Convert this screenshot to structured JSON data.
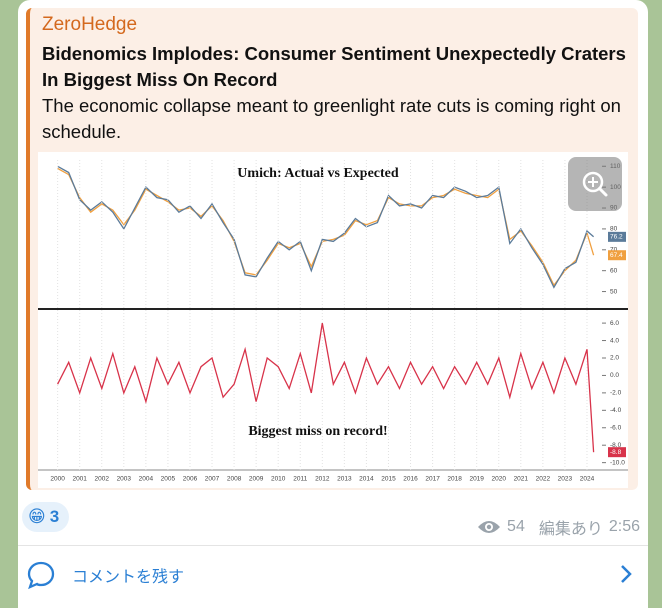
{
  "message": {
    "source": "ZeroHedge",
    "title": "Bidenomics Implodes: Consumer Sentiment Unexpectedly Craters In Biggest Miss On Record",
    "text": "The economic collapse meant to greenlight rate cuts is coming right on schedule.",
    "reaction_emoji": "😁",
    "reaction_count": 3,
    "views": 54,
    "edited": "編集あり",
    "time": "2:56",
    "comment": "コメントを残す"
  },
  "chart_data": [
    {
      "type": "line",
      "title": "Umich: Actual vs Expected",
      "x": [
        2000,
        2000.5,
        2001,
        2001.5,
        2002,
        2002.5,
        2003,
        2003.5,
        2004,
        2004.5,
        2005,
        2005.5,
        2006,
        2006.5,
        2007,
        2007.5,
        2008,
        2008.5,
        2009,
        2009.5,
        2010,
        2010.5,
        2011,
        2011.5,
        2012,
        2012.5,
        2013,
        2013.5,
        2014,
        2014.5,
        2015,
        2015.5,
        2016,
        2016.5,
        2017,
        2017.5,
        2018,
        2018.5,
        2019,
        2019.5,
        2020,
        2020.5,
        2021,
        2021.5,
        2022,
        2022.5,
        2023,
        2023.5,
        2024,
        2024.3
      ],
      "series": [
        {
          "color": "#f0a040",
          "values": [
            109,
            106,
            95,
            88,
            92,
            89,
            82,
            89,
            99,
            96,
            93,
            89,
            90,
            86,
            91,
            84,
            74,
            59,
            58,
            65,
            73,
            71,
            73,
            62,
            74,
            75,
            77,
            84,
            82,
            84,
            95,
            92,
            91,
            91,
            95,
            96,
            99,
            97,
            96,
            95,
            99,
            75,
            79,
            72,
            64,
            53,
            60,
            65,
            78,
            67.4
          ]
        },
        {
          "color": "#5b7b9a",
          "values": [
            110,
            107,
            94,
            89,
            93,
            88,
            80,
            90,
            100,
            95,
            94,
            88,
            91,
            85,
            92,
            83,
            75,
            58,
            57,
            66,
            74,
            70,
            74,
            60,
            75,
            74,
            78,
            85,
            81,
            83,
            96,
            91,
            92,
            90,
            96,
            95,
            100,
            98,
            95,
            96,
            100,
            73,
            80,
            71,
            63,
            52,
            61,
            64,
            79,
            76.2
          ]
        }
      ],
      "xlim": [
        1999.2,
        2024.5
      ],
      "ylim": [
        45,
        113
      ],
      "yticks": [
        50,
        60,
        70,
        80,
        90,
        100,
        110
      ]
    },
    {
      "type": "line",
      "title": "Biggest miss on record!",
      "x": [
        2000,
        2000.5,
        2001,
        2001.5,
        2002,
        2002.5,
        2003,
        2003.5,
        2004,
        2004.5,
        2005,
        2005.5,
        2006,
        2006.5,
        2007,
        2007.5,
        2008,
        2008.5,
        2009,
        2009.5,
        2010,
        2010.5,
        2011,
        2011.5,
        2012,
        2012.5,
        2013,
        2013.5,
        2014,
        2014.5,
        2015,
        2015.5,
        2016,
        2016.5,
        2017,
        2017.5,
        2018,
        2018.5,
        2019,
        2019.5,
        2020,
        2020.5,
        2021,
        2021.5,
        2022,
        2022.5,
        2023,
        2023.5,
        2024,
        2024.3
      ],
      "series": [
        {
          "color": "#d8334a",
          "values": [
            -1,
            1.5,
            -2,
            2,
            -1.5,
            2.5,
            -2,
            1,
            -3,
            2,
            -1,
            1.5,
            -2,
            1,
            2,
            -2.5,
            -1,
            3,
            -3,
            2,
            1,
            -1.5,
            2.5,
            -2,
            6,
            -1,
            1.5,
            -2,
            2,
            -1,
            1,
            -1.5,
            1.5,
            -1,
            1,
            -1.5,
            1,
            -1,
            1.5,
            -1,
            2,
            -2.5,
            2.5,
            -1.5,
            1.5,
            -2,
            2,
            -1,
            3,
            -8.8
          ]
        }
      ],
      "xlim": [
        1999.2,
        2024.5
      ],
      "ylim": [
        -10.5,
        6.7
      ],
      "yticks": [
        {
          "value": 6,
          "label": "6.0"
        },
        {
          "value": 4,
          "label": "4.0"
        },
        {
          "value": 2,
          "label": "2.0"
        },
        {
          "value": 0,
          "label": "0.0"
        },
        {
          "value": -2,
          "label": "-2.0"
        },
        {
          "value": -4,
          "label": "-4.0"
        },
        {
          "value": -6,
          "label": "-6.0"
        },
        {
          "value": -8,
          "label": "-8.0"
        },
        {
          "value": -10,
          "label": "-10.0"
        }
      ],
      "xticks": [
        2000,
        2001,
        2002,
        2003,
        2004,
        2005,
        2006,
        2007,
        2008,
        2009,
        2010,
        2011,
        2012,
        2013,
        2014,
        2015,
        2016,
        2017,
        2018,
        2019,
        2020,
        2021,
        2022,
        2023,
        2024
      ]
    }
  ]
}
